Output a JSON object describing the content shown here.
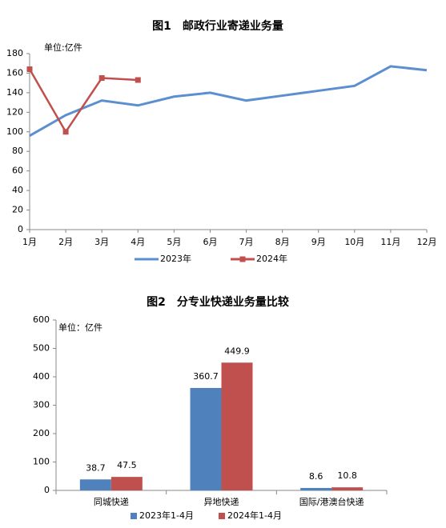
{
  "chart_data": [
    {
      "type": "line",
      "title": "图1　邮政行业寄递业务量",
      "unit_label": "单位:亿件",
      "categories": [
        "1月",
        "2月",
        "3月",
        "4月",
        "5月",
        "6月",
        "7月",
        "8月",
        "9月",
        "10月",
        "11月",
        "12月"
      ],
      "series": [
        {
          "name": "2023年",
          "color": "#5b8fd0",
          "values": [
            96,
            117,
            132,
            127,
            136,
            140,
            132,
            137,
            142,
            147,
            167,
            163
          ]
        },
        {
          "name": "2024年",
          "color": "#c0504d",
          "values": [
            164,
            100,
            155,
            153,
            null,
            null,
            null,
            null,
            null,
            null,
            null,
            null
          ]
        }
      ],
      "ylim": [
        0,
        180
      ],
      "yticks": [
        0,
        20,
        40,
        60,
        80,
        100,
        120,
        140,
        160,
        180
      ],
      "grid": false
    },
    {
      "type": "bar",
      "title": "图2　分专业快递业务量比较",
      "unit_label": "单位：亿件",
      "categories": [
        "同城快递",
        "异地快递",
        "国际/港澳台快递"
      ],
      "series": [
        {
          "name": "2023年1-4月",
          "color": "#4f81bd",
          "values": [
            38.7,
            360.7,
            8.6
          ]
        },
        {
          "name": "2024年1-4月",
          "color": "#c0504d",
          "values": [
            47.5,
            449.9,
            10.8
          ]
        }
      ],
      "ylim": [
        0,
        600
      ],
      "yticks": [
        0,
        100,
        200,
        300,
        400,
        500,
        600
      ],
      "grid": false
    }
  ]
}
